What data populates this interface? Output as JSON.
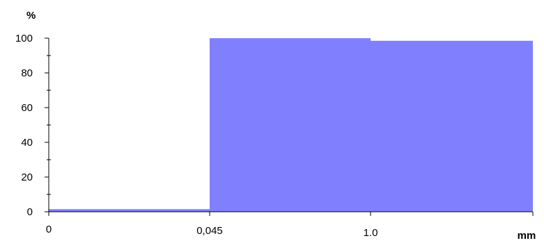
{
  "chart_data": {
    "type": "bar",
    "title": "",
    "xlabel": "mm",
    "ylabel": "%",
    "ylim": [
      0,
      100
    ],
    "yticks": [
      "0",
      "20",
      "40",
      "60",
      "80",
      "100"
    ],
    "x_tick_labels": [
      "0",
      "0,045",
      "1.0",
      "mm"
    ],
    "categories": [
      "0 – 0,045",
      "0,045 – 1.0",
      "1.0 – "
    ],
    "values": [
      1.5,
      100,
      98.5
    ],
    "bar_color": "#8080ff",
    "grid": false,
    "legend": "none"
  }
}
